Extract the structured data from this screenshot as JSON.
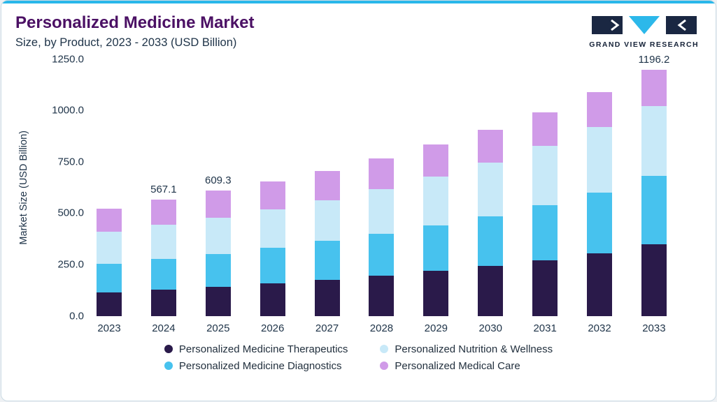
{
  "header": {
    "title": "Personalized Medicine Market",
    "subtitle": "Size, by Product, 2023 - 2033 (USD Billion)",
    "logo_text": "GRAND VIEW RESEARCH"
  },
  "brand": {
    "accent_color": "#29B7EA",
    "logo_dark_color": "#1A2742",
    "logo_cyan_color": "#2CB8EA",
    "title_color": "#4B1064"
  },
  "chart_data": {
    "type": "bar",
    "stacked": true,
    "title": "Personalized Medicine Market Size, by Product, 2023 - 2033 (USD Billion)",
    "xlabel": "",
    "ylabel": "Market Size (USD Billion)",
    "ylim": [
      0,
      1250
    ],
    "yticks": [
      "0.0",
      "250.0",
      "500.0",
      "750.0",
      "1000.0",
      "1250.0"
    ],
    "grid": false,
    "legend_position": "bottom",
    "categories": [
      "2023",
      "2024",
      "2025",
      "2026",
      "2027",
      "2028",
      "2029",
      "2030",
      "2031",
      "2032",
      "2033"
    ],
    "series": [
      {
        "key": "therapeutics",
        "name": "Personalized Medicine Therapeutics",
        "color": "#2A1A4A",
        "values": [
          115,
          128,
          142,
          158,
          176,
          196,
          218,
          243,
          270,
          305,
          350
        ]
      },
      {
        "key": "diagnostics",
        "name": "Personalized Medicine Diagnostics",
        "color": "#47C2EE",
        "values": [
          138,
          148,
          158,
          172,
          188,
          205,
          222,
          242,
          268,
          295,
          330
        ]
      },
      {
        "key": "nutrition-wellness",
        "name": "Personalized Nutrition & Wellness",
        "color": "#C8E9F8",
        "values": [
          158,
          168,
          178,
          188,
          198,
          215,
          238,
          262,
          288,
          318,
          340
        ]
      },
      {
        "key": "medical-care",
        "name": "Personalized Medical Care",
        "color": "#D09BE8",
        "values": [
          112,
          123.1,
          131.3,
          135,
          142,
          150,
          155,
          160,
          166,
          170,
          176.2
        ]
      }
    ],
    "totals": [
      523,
      567.1,
      609.3,
      653,
      704,
      766,
      833,
      907,
      992,
      1088,
      1196.2
    ],
    "bar_total_labels": [
      "",
      "567.1",
      "609.3",
      "",
      "",
      "",
      "",
      "",
      "",
      "",
      "1196.2"
    ],
    "legend_order": [
      0,
      2,
      1,
      3
    ]
  }
}
